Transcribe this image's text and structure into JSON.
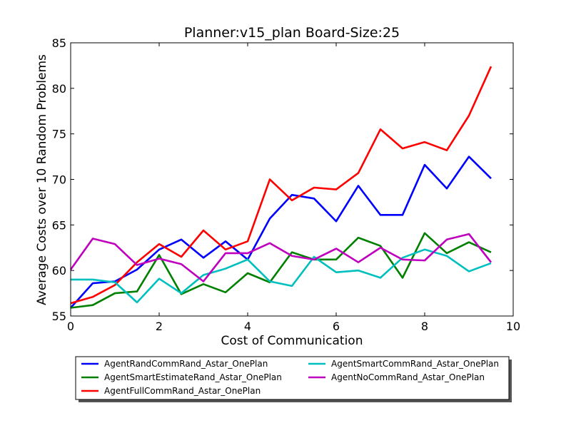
{
  "chart_data": {
    "type": "line",
    "title": "Planner:v15_plan Board-Size:25",
    "xlabel": "Cost of Communication",
    "ylabel": "Average Costs over 10 Random Problems",
    "xlim": [
      0,
      10
    ],
    "ylim": [
      55,
      85
    ],
    "xticks": [
      "0",
      "2",
      "4",
      "6",
      "8",
      "10"
    ],
    "yticks": [
      "55",
      "60",
      "65",
      "70",
      "75",
      "80",
      "85"
    ],
    "grid": false,
    "legend_position": "below",
    "x": [
      0,
      0.5,
      1,
      1.5,
      2,
      2.5,
      3,
      3.5,
      4,
      4.5,
      5,
      5.5,
      6,
      6.5,
      7,
      7.5,
      8,
      8.5,
      9,
      9.5
    ],
    "series": [
      {
        "name": "AgentRandCommRand_Astar_OnePlan",
        "color": "#0000ff",
        "values": [
          55.9,
          58.6,
          58.8,
          60.1,
          62.3,
          63.4,
          61.4,
          63.2,
          61.2,
          65.7,
          68.3,
          67.9,
          65.4,
          69.3,
          66.1,
          66.1,
          71.6,
          69.0,
          72.5,
          70.1
        ]
      },
      {
        "name": "AgentSmartEstimateRand_Astar_OnePlan",
        "color": "#008000",
        "values": [
          55.9,
          56.2,
          57.5,
          57.7,
          61.7,
          57.4,
          58.5,
          57.6,
          59.7,
          58.7,
          62.0,
          61.2,
          61.2,
          63.6,
          62.7,
          59.2,
          64.1,
          61.9,
          63.1,
          62.0
        ]
      },
      {
        "name": "AgentFullCommRand_Astar_OnePlan",
        "color": "#ff0000",
        "values": [
          56.4,
          57.1,
          58.4,
          60.9,
          62.9,
          61.5,
          64.4,
          62.3,
          63.2,
          70.0,
          67.7,
          69.1,
          68.9,
          70.7,
          75.5,
          73.4,
          74.1,
          73.2,
          77.0,
          82.4
        ]
      },
      {
        "name": "AgentSmartCommRand_Astar_OnePlan",
        "color": "#00bfbf",
        "values": [
          59.0,
          59.0,
          58.7,
          56.5,
          59.1,
          57.5,
          59.5,
          60.2,
          61.2,
          58.8,
          58.3,
          61.5,
          59.8,
          60.0,
          59.2,
          61.4,
          62.3,
          61.6,
          59.9,
          60.8
        ]
      },
      {
        "name": "AgentNoCommRand_Astar_OnePlan",
        "color": "#bf00bf",
        "values": [
          60.1,
          63.5,
          62.9,
          60.6,
          61.3,
          60.7,
          58.8,
          61.9,
          61.9,
          63.0,
          61.6,
          61.2,
          62.4,
          60.9,
          62.5,
          61.2,
          61.1,
          63.4,
          64.0,
          60.9
        ]
      }
    ]
  }
}
